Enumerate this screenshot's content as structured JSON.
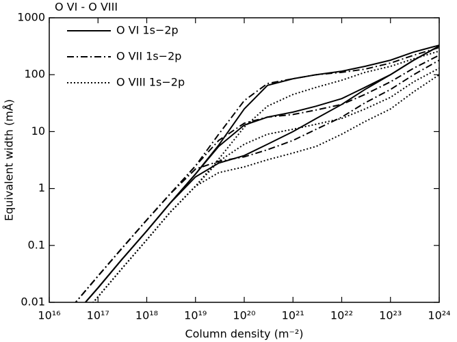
{
  "chart_data": {
    "type": "line",
    "title": "O VI - O VIII",
    "xlabel": "Column density (m⁻²)",
    "ylabel": "Equivalent width (mÅ)",
    "xscale": "log",
    "yscale": "log",
    "xlim": [
      1e+16,
      1e+24
    ],
    "ylim": [
      0.01,
      1000
    ],
    "xticks": [
      {
        "value": 1e+16,
        "label": "10¹⁶"
      },
      {
        "value": 1e+17,
        "label": "10¹⁷"
      },
      {
        "value": 1e+18,
        "label": "10¹⁸"
      },
      {
        "value": 1e+19,
        "label": "10¹⁹"
      },
      {
        "value": 1e+20,
        "label": "10²⁰"
      },
      {
        "value": 1e+21,
        "label": "10²¹"
      },
      {
        "value": 1e+22,
        "label": "10²²"
      },
      {
        "value": 1e+23,
        "label": "10²³"
      },
      {
        "value": 1e+24,
        "label": "10²⁴"
      }
    ],
    "yticks": [
      0.01,
      0.1,
      1,
      10,
      100,
      1000
    ],
    "legend": "upper left",
    "x": [
      3e+16,
      1e+17,
      3e+17,
      1e+18,
      3e+18,
      1e+19,
      3e+19,
      1e+20,
      3e+20,
      1e+21,
      3e+21,
      1e+22,
      3e+22,
      1e+23,
      3e+23,
      1e+24
    ],
    "series": [
      {
        "name": "O VI 1s−2p",
        "color": "#000000",
        "style": "solid",
        "lines": [
          [
            0.0055,
            0.018,
            0.055,
            0.18,
            0.55,
            1.6,
            2.8,
            3.8,
            6,
            10,
            17,
            30,
            55,
            100,
            180,
            320
          ],
          [
            0.0055,
            0.018,
            0.055,
            0.18,
            0.55,
            1.8,
            5.5,
            13,
            18,
            22,
            28,
            38,
            60,
            100,
            180,
            320
          ],
          [
            0.0055,
            0.018,
            0.055,
            0.18,
            0.55,
            1.8,
            5.8,
            25,
            65,
            85,
            100,
            115,
            140,
            180,
            250,
            330
          ]
        ]
      },
      {
        "name": "O VII 1s−2p",
        "color": "#000000",
        "style": "dashdot",
        "lines": [
          [
            0.0086,
            0.029,
            0.086,
            0.28,
            0.8,
            2.2,
            3,
            3.6,
            4.8,
            7,
            11,
            18,
            32,
            55,
            100,
            180
          ],
          [
            0.0086,
            0.029,
            0.086,
            0.28,
            0.8,
            2.5,
            7,
            14,
            18,
            20,
            24,
            30,
            45,
            75,
            130,
            220
          ],
          [
            0.0086,
            0.029,
            0.086,
            0.28,
            0.8,
            2.5,
            9,
            35,
            70,
            85,
            100,
            110,
            125,
            160,
            220,
            300
          ]
        ]
      },
      {
        "name": "O VIII 1s−2p",
        "color": "#000000",
        "style": "dotted",
        "lines": [
          [
            0.0038,
            0.0125,
            0.038,
            0.125,
            0.38,
            1.1,
            1.9,
            2.4,
            3.2,
            4.2,
            5.5,
            9,
            15,
            25,
            50,
            100
          ],
          [
            0.0038,
            0.0125,
            0.038,
            0.125,
            0.38,
            1.1,
            3,
            6,
            9,
            11,
            13.5,
            17,
            25,
            40,
            75,
            130
          ],
          [
            0.0038,
            0.0125,
            0.038,
            0.125,
            0.38,
            1.1,
            3.3,
            12,
            28,
            45,
            60,
            80,
            110,
            140,
            190,
            260
          ]
        ]
      }
    ]
  }
}
